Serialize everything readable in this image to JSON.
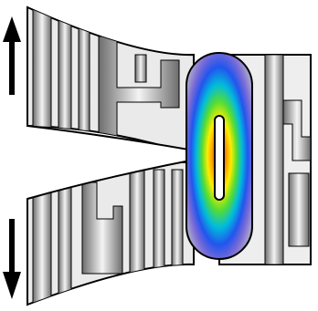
{
  "figure": {
    "elements": [
      {
        "name": "upper-arm",
        "shape": "tapered-beam",
        "pattern": "grayscale-serpentine-traces"
      },
      {
        "name": "lower-arm",
        "shape": "tapered-beam",
        "pattern": "grayscale-serpentine-traces"
      },
      {
        "name": "stress-capsule",
        "shape": "rounded-rectangle",
        "pattern": "radial-heatmap"
      },
      {
        "name": "right-block",
        "shape": "rectangle",
        "pattern": "grayscale-serpentine-traces"
      },
      {
        "name": "slot",
        "shape": "narrow-rounded-slot"
      },
      {
        "name": "crack-notch",
        "shape": "wedge"
      }
    ],
    "arrows": [
      {
        "name": "up-arrow",
        "direction": "up",
        "position": "top-left"
      },
      {
        "name": "down-arrow",
        "direction": "down",
        "position": "bottom-left"
      }
    ],
    "colors": {
      "frame": "#000000",
      "metal_light": "#f2f2f2",
      "metal_dark": "#7a7a7a",
      "gap": "#e8e8e8",
      "heat_scale": [
        "#ff0000",
        "#ff8800",
        "#ffee00",
        "#55dd33",
        "#00bbdd",
        "#2255ee",
        "#7b6bd6",
        "#9a9acc"
      ]
    }
  }
}
